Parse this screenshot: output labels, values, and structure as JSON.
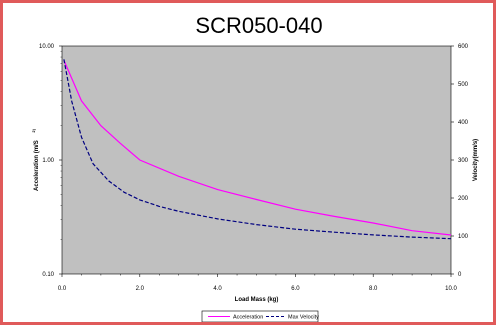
{
  "chart_data": {
    "type": "line",
    "title": "SCR050-040",
    "xlabel": "Load Mass (kg)",
    "ylabel_left": "Acceleration (m/S",
    "ylabel_left_sup": "2)",
    "ylabel_right": "Velocity(mm/s)",
    "xlim": [
      0,
      10
    ],
    "ylim_left": [
      0.1,
      10
    ],
    "ylim_right": [
      0,
      600
    ],
    "left_scale": "log",
    "x_ticks": [
      "0.0",
      "2.0",
      "4.0",
      "6.0",
      "8.0",
      "10.0"
    ],
    "x_tick_values": [
      0,
      2,
      4,
      6,
      8,
      10
    ],
    "y_left_ticks": [
      "10.00",
      "1.00",
      "0.10"
    ],
    "y_left_tick_values": [
      10,
      1,
      0.1
    ],
    "y_right_ticks": [
      "600",
      "500",
      "400",
      "300",
      "200",
      "100",
      "0"
    ],
    "y_right_tick_values": [
      600,
      500,
      400,
      300,
      200,
      100,
      0
    ],
    "plot_background": "#c0c0c0",
    "grid": false,
    "legend_position": "bottom",
    "series": [
      {
        "name": "Acceleration",
        "axis": "left",
        "color": "#ff00ff",
        "style": "solid",
        "x": [
          0.05,
          0.5,
          1.0,
          1.5,
          2.0,
          3.0,
          4.0,
          5.0,
          6.0,
          7.0,
          8.0,
          9.0,
          10.0
        ],
        "y": [
          7.5,
          3.3,
          2.0,
          1.4,
          1.0,
          0.72,
          0.55,
          0.45,
          0.37,
          0.32,
          0.28,
          0.24,
          0.22
        ]
      },
      {
        "name": "Max Velocity",
        "axis": "right",
        "color": "#000080",
        "style": "dashed",
        "x": [
          0.05,
          0.25,
          0.5,
          0.8,
          1.2,
          1.6,
          2.0,
          2.5,
          3.0,
          4.0,
          5.0,
          6.0,
          7.0,
          8.0,
          9.0,
          10.0
        ],
        "y": [
          565,
          455,
          360,
          290,
          245,
          215,
          195,
          178,
          165,
          145,
          130,
          118,
          110,
          103,
          97,
          93
        ]
      }
    ]
  }
}
